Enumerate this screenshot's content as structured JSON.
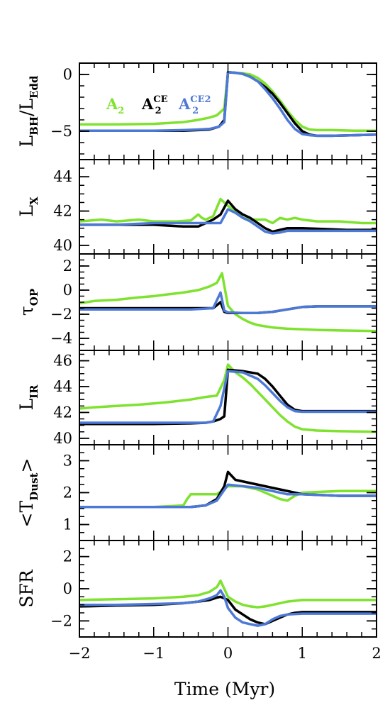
{
  "chart_data": {
    "type": "line",
    "xlabel": "Time (Myr)",
    "xlim": [
      -2,
      2
    ],
    "xticks": [
      -2,
      -1,
      0,
      1,
      2
    ],
    "xtick_labels": [
      "−2",
      "−1",
      "0",
      "1",
      "2"
    ],
    "legend": {
      "placement": "top-left",
      "entries": [
        {
          "base": "A",
          "sub": "2",
          "sup": "",
          "color": "#7fe22f"
        },
        {
          "base": "A",
          "sub": "2",
          "sup": "CE",
          "color": "#000000"
        },
        {
          "base": "A",
          "sub": "2",
          "sup": "CE2",
          "color": "#4d79d6"
        }
      ]
    },
    "colors": {
      "A2": "#7fe22f",
      "A2CE": "#000000",
      "A2CE2": "#4d79d6"
    },
    "panels": [
      {
        "ylabel": {
          "main": "L",
          "sub": "BH",
          "rest": "/L",
          "sub2": "Edd"
        },
        "ylim": [
          -7.5,
          1
        ],
        "yticks": [
          0,
          -5
        ],
        "ytick_labels": [
          "0",
          "−5"
        ],
        "minor_step": 1,
        "series": [
          {
            "key": "A2",
            "x": [
              -2,
              -1.5,
              -1,
              -0.6,
              -0.4,
              -0.25,
              -0.15,
              -0.05,
              0,
              0.1,
              0.2,
              0.3,
              0.4,
              0.5,
              0.6,
              0.7,
              0.8,
              0.9,
              1.0,
              1.1,
              1.2,
              1.4,
              1.7,
              2.0
            ],
            "y": [
              -4.4,
              -4.4,
              -4.35,
              -4.2,
              -4.0,
              -3.8,
              -3.6,
              -3.0,
              0.2,
              0.15,
              0.1,
              0.0,
              -0.3,
              -0.8,
              -1.5,
              -2.3,
              -3.2,
              -4.0,
              -4.6,
              -4.85,
              -4.9,
              -4.9,
              -4.95,
              -4.95
            ]
          },
          {
            "key": "A2CE",
            "x": [
              -2,
              -1.5,
              -1,
              -0.6,
              -0.4,
              -0.25,
              -0.12,
              -0.05,
              0,
              0.1,
              0.2,
              0.3,
              0.4,
              0.5,
              0.6,
              0.7,
              0.8,
              0.9,
              1.0,
              1.1,
              1.2,
              1.4,
              1.7,
              2.0
            ],
            "y": [
              -4.95,
              -4.95,
              -4.95,
              -4.95,
              -4.9,
              -4.85,
              -4.6,
              -4.0,
              0.2,
              0.15,
              0.05,
              -0.2,
              -0.6,
              -1.1,
              -1.7,
              -2.5,
              -3.4,
              -4.3,
              -5.0,
              -5.3,
              -5.4,
              -5.4,
              -5.35,
              -5.3
            ]
          },
          {
            "key": "A2CE2",
            "x": [
              -2,
              -1.5,
              -1,
              -0.6,
              -0.4,
              -0.25,
              -0.12,
              -0.05,
              0,
              0.1,
              0.2,
              0.3,
              0.4,
              0.5,
              0.6,
              0.7,
              0.8,
              0.9,
              1.0,
              1.1,
              1.2,
              1.4,
              1.7,
              2.0
            ],
            "y": [
              -4.95,
              -4.95,
              -4.95,
              -4.9,
              -4.85,
              -4.8,
              -4.6,
              -4.2,
              0.2,
              0.15,
              0.05,
              -0.2,
              -0.6,
              -1.3,
              -2.1,
              -3.0,
              -4.0,
              -4.8,
              -5.25,
              -5.35,
              -5.4,
              -5.4,
              -5.35,
              -5.3
            ]
          }
        ]
      },
      {
        "ylabel": {
          "main": "L",
          "sub": "X",
          "rest": "",
          "sub2": ""
        },
        "ylim": [
          39.5,
          45
        ],
        "yticks": [
          40,
          42,
          44
        ],
        "ytick_labels": [
          "40",
          "42",
          "44"
        ],
        "minor_step": 0.5,
        "series": [
          {
            "key": "A2",
            "x": [
              -2,
              -1.7,
              -1.5,
              -1.2,
              -1.0,
              -0.7,
              -0.5,
              -0.4,
              -0.35,
              -0.3,
              -0.2,
              -0.1,
              0,
              0.1,
              0.2,
              0.3,
              0.5,
              0.6,
              0.7,
              0.8,
              0.9,
              1.0,
              1.2,
              1.5,
              1.8,
              2.0
            ],
            "y": [
              41.4,
              41.5,
              41.4,
              41.5,
              41.4,
              41.4,
              41.45,
              41.8,
              41.6,
              41.5,
              41.7,
              42.7,
              42.3,
              42.0,
              41.6,
              41.5,
              41.5,
              41.3,
              41.6,
              41.5,
              41.6,
              41.5,
              41.4,
              41.4,
              41.3,
              41.3
            ]
          },
          {
            "key": "A2CE",
            "x": [
              -2,
              -1.5,
              -1,
              -0.6,
              -0.4,
              -0.3,
              -0.2,
              -0.1,
              0,
              0.1,
              0.2,
              0.3,
              0.4,
              0.5,
              0.6,
              0.7,
              0.8,
              0.9,
              1.0,
              1.3,
              1.6,
              2.0
            ],
            "y": [
              41.2,
              41.2,
              41.2,
              41.1,
              41.1,
              41.3,
              41.5,
              41.8,
              42.6,
              42.1,
              41.8,
              41.6,
              41.3,
              41.0,
              40.8,
              40.9,
              41.0,
              41.0,
              41.0,
              40.95,
              40.9,
              40.9
            ]
          },
          {
            "key": "A2CE2",
            "x": [
              -2,
              -1.5,
              -1,
              -0.6,
              -0.4,
              -0.3,
              -0.2,
              -0.1,
              0,
              0.1,
              0.2,
              0.3,
              0.4,
              0.5,
              0.6,
              0.7,
              0.8,
              0.9,
              1.0,
              1.3,
              1.6,
              2.0
            ],
            "y": [
              41.2,
              41.2,
              41.3,
              41.3,
              41.3,
              41.3,
              41.3,
              41.3,
              42.1,
              41.9,
              41.6,
              41.4,
              41.1,
              40.8,
              40.7,
              40.75,
              40.85,
              40.85,
              40.85,
              40.85,
              40.85,
              40.85
            ]
          }
        ]
      },
      {
        "ylabel": {
          "main": "τ",
          "sub": "OP",
          "rest": "",
          "sub2": ""
        },
        "ylim": [
          -5,
          3
        ],
        "yticks": [
          -4,
          -2,
          0,
          2
        ],
        "ytick_labels": [
          "−4",
          "−2",
          "0",
          "2"
        ],
        "minor_step": 0.5,
        "series": [
          {
            "key": "A2",
            "x": [
              -2,
              -1.8,
              -1.5,
              -1.2,
              -1.0,
              -0.8,
              -0.6,
              -0.4,
              -0.25,
              -0.15,
              -0.08,
              0,
              0.1,
              0.2,
              0.3,
              0.4,
              0.5,
              0.6,
              0.8,
              1.0,
              1.2,
              1.5,
              2.0
            ],
            "y": [
              -1.1,
              -0.9,
              -0.8,
              -0.6,
              -0.5,
              -0.35,
              -0.2,
              0.0,
              0.3,
              0.6,
              1.4,
              -1.3,
              -2.0,
              -2.4,
              -2.7,
              -2.9,
              -3.0,
              -3.1,
              -3.2,
              -3.25,
              -3.3,
              -3.35,
              -3.4
            ]
          },
          {
            "key": "A2CE",
            "x": [
              -2,
              -1.5,
              -1,
              -0.5,
              -0.2,
              -0.1,
              -0.05,
              0,
              0.2,
              0.4,
              0.6,
              0.8,
              1.0,
              1.2,
              1.5,
              2.0
            ],
            "y": [
              -1.5,
              -1.5,
              -1.5,
              -1.5,
              -1.5,
              -1.0,
              -1.8,
              -1.9,
              -1.9,
              -1.9,
              -1.8,
              -1.6,
              -1.4,
              -1.35,
              -1.35,
              -1.35
            ]
          },
          {
            "key": "A2CE2",
            "x": [
              -2,
              -1.5,
              -1,
              -0.5,
              -0.2,
              -0.1,
              -0.05,
              0,
              0.2,
              0.4,
              0.6,
              0.8,
              1.0,
              1.2,
              1.5,
              2.0
            ],
            "y": [
              -1.6,
              -1.6,
              -1.6,
              -1.6,
              -1.5,
              -0.2,
              -1.7,
              -1.85,
              -1.9,
              -1.9,
              -1.8,
              -1.6,
              -1.4,
              -1.35,
              -1.35,
              -1.35
            ]
          }
        ]
      },
      {
        "ylabel": {
          "main": "L",
          "sub": "IR",
          "rest": "",
          "sub2": ""
        },
        "ylim": [
          39.5,
          46.8
        ],
        "yticks": [
          40,
          42,
          44,
          46
        ],
        "ytick_labels": [
          "40",
          "42",
          "44",
          "46"
        ],
        "minor_step": 0.5,
        "series": [
          {
            "key": "A2",
            "x": [
              -2,
              -1.8,
              -1.5,
              -1.2,
              -1.0,
              -0.8,
              -0.5,
              -0.3,
              -0.15,
              -0.05,
              0,
              0.1,
              0.2,
              0.3,
              0.4,
              0.5,
              0.6,
              0.7,
              0.8,
              0.9,
              1.0,
              1.2,
              1.5,
              2.0
            ],
            "y": [
              42.3,
              42.4,
              42.5,
              42.6,
              42.7,
              42.8,
              43.0,
              43.2,
              43.3,
              44.5,
              45.7,
              45.1,
              44.7,
              44.2,
              43.6,
              43.0,
              42.4,
              41.8,
              41.3,
              40.9,
              40.7,
              40.6,
              40.55,
              40.5
            ]
          },
          {
            "key": "A2CE",
            "x": [
              -2,
              -1.5,
              -1,
              -0.5,
              -0.3,
              -0.2,
              -0.1,
              -0.05,
              0,
              0.2,
              0.4,
              0.5,
              0.6,
              0.7,
              0.8,
              0.9,
              1.0,
              1.2,
              1.5,
              2.0
            ],
            "y": [
              41.1,
              41.1,
              41.1,
              41.15,
              41.2,
              41.3,
              41.5,
              41.7,
              45.3,
              45.2,
              45.0,
              44.6,
              44.0,
              43.3,
              42.6,
              42.2,
              42.1,
              42.1,
              42.1,
              42.1
            ]
          },
          {
            "key": "A2CE2",
            "x": [
              -2,
              -1.5,
              -1,
              -0.5,
              -0.3,
              -0.2,
              -0.1,
              0,
              0.2,
              0.4,
              0.5,
              0.6,
              0.7,
              0.8,
              0.9,
              1.0,
              1.2,
              1.5,
              2.0
            ],
            "y": [
              41.2,
              41.2,
              41.2,
              41.2,
              41.2,
              41.3,
              42.5,
              45.2,
              45.1,
              44.6,
              44.1,
              43.5,
              42.9,
              42.4,
              42.1,
              42.05,
              42.05,
              42.05,
              42.05
            ]
          }
        ]
      },
      {
        "ylabel": {
          "main": "<T",
          "sub": "Dust",
          "rest": ">",
          "sub2": ""
        },
        "ylim": [
          0.5,
          3.5
        ],
        "yticks": [
          1,
          2,
          3
        ],
        "ytick_labels": [
          "1",
          "2",
          "3"
        ],
        "minor_step": 0.25,
        "series": [
          {
            "key": "A2",
            "x": [
              -2,
              -1.5,
              -1,
              -0.6,
              -0.55,
              -0.5,
              -0.3,
              -0.15,
              0,
              0.2,
              0.4,
              0.5,
              0.6,
              0.7,
              0.8,
              0.9,
              1.0,
              1.5,
              2.0
            ],
            "y": [
              1.55,
              1.55,
              1.55,
              1.6,
              1.8,
              1.95,
              1.95,
              1.95,
              2.2,
              2.2,
              2.1,
              2.0,
              1.9,
              1.8,
              1.75,
              1.9,
              2.0,
              2.05,
              2.05
            ]
          },
          {
            "key": "A2CE",
            "x": [
              -2,
              -1.5,
              -1,
              -0.5,
              -0.3,
              -0.15,
              -0.05,
              0,
              0.1,
              0.3,
              0.5,
              0.7,
              0.9,
              1.0,
              1.5,
              2.0
            ],
            "y": [
              1.55,
              1.55,
              1.55,
              1.55,
              1.6,
              1.8,
              2.2,
              2.65,
              2.4,
              2.3,
              2.2,
              2.1,
              2.0,
              1.95,
              1.9,
              1.9
            ]
          },
          {
            "key": "A2CE2",
            "x": [
              -2,
              -1.5,
              -1,
              -0.5,
              -0.3,
              -0.15,
              0,
              0.2,
              0.4,
              0.6,
              0.8,
              1.0,
              1.5,
              2.0
            ],
            "y": [
              1.55,
              1.55,
              1.55,
              1.55,
              1.6,
              1.75,
              2.25,
              2.2,
              2.15,
              2.05,
              1.95,
              1.95,
              1.9,
              1.9
            ]
          }
        ]
      },
      {
        "ylabel": {
          "main": "SFR",
          "sub": "",
          "rest": "",
          "sub2": ""
        },
        "ylim": [
          -3,
          3
        ],
        "yticks": [
          -2,
          0,
          2
        ],
        "ytick_labels": [
          "−2",
          "0",
          "2"
        ],
        "minor_step": 0.5,
        "series": [
          {
            "key": "A2",
            "x": [
              -2,
              -1.5,
              -1,
              -0.6,
              -0.4,
              -0.25,
              -0.15,
              -0.1,
              0,
              0.1,
              0.2,
              0.3,
              0.4,
              0.5,
              0.6,
              0.7,
              0.8,
              0.9,
              1.0,
              1.5,
              2.0
            ],
            "y": [
              -0.7,
              -0.65,
              -0.6,
              -0.5,
              -0.4,
              -0.2,
              0.1,
              0.5,
              -0.5,
              -0.8,
              -1.0,
              -1.1,
              -1.15,
              -1.1,
              -1.0,
              -0.9,
              -0.8,
              -0.75,
              -0.7,
              -0.7,
              -0.7
            ]
          },
          {
            "key": "A2CE",
            "x": [
              -2,
              -1.5,
              -1,
              -0.6,
              -0.4,
              -0.25,
              -0.15,
              -0.1,
              0,
              0.1,
              0.2,
              0.3,
              0.4,
              0.5,
              0.6,
              0.7,
              0.8,
              0.9,
              1.0,
              1.5,
              2.0
            ],
            "y": [
              -1.1,
              -1.05,
              -1.0,
              -0.9,
              -0.8,
              -0.7,
              -0.55,
              -0.5,
              -0.7,
              -1.3,
              -1.6,
              -1.9,
              -2.1,
              -2.2,
              -2.0,
              -1.8,
              -1.6,
              -1.5,
              -1.45,
              -1.45,
              -1.45
            ]
          },
          {
            "key": "A2CE2",
            "x": [
              -2,
              -1.5,
              -1,
              -0.6,
              -0.4,
              -0.25,
              -0.15,
              -0.1,
              -0.05,
              0,
              0.1,
              0.2,
              0.3,
              0.4,
              0.5,
              0.6,
              0.7,
              0.8,
              1.0,
              1.5,
              2.0
            ],
            "y": [
              -1.0,
              -1.0,
              -0.95,
              -0.9,
              -0.8,
              -0.6,
              -0.4,
              -0.1,
              -0.5,
              -1.2,
              -1.8,
              -2.1,
              -2.2,
              -2.3,
              -2.2,
              -1.9,
              -1.7,
              -1.6,
              -1.55,
              -1.55,
              -1.55
            ]
          }
        ]
      }
    ]
  }
}
